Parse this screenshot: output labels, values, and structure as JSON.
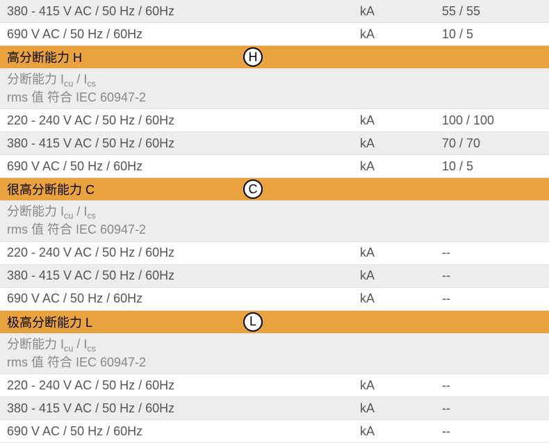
{
  "colors": {
    "header_bg": "#e8a23e",
    "row_even_bg": "#ededed",
    "row_odd_bg": "#ffffff",
    "text_color": "#555555",
    "subheader_text": "#888888",
    "border_color": "#e0e0e0"
  },
  "rows": [
    {
      "type": "data",
      "bg": "even",
      "label": "380 - 415 V AC / 50 Hz / 60Hz",
      "unit": "kA",
      "value": "55 / 55"
    },
    {
      "type": "data",
      "bg": "odd",
      "label": "690 V AC / 50 Hz / 60Hz",
      "unit": "kA",
      "value": "10 / 5"
    },
    {
      "type": "header",
      "label": "高分断能力 H",
      "icon": "H"
    },
    {
      "type": "subheader",
      "line1_prefix": "分断能力 I",
      "line1_sub1": "cu",
      "line1_mid": " / I",
      "line1_sub2": "cs",
      "line2": "rms 值 符合 IEC 60947-2"
    },
    {
      "type": "data",
      "bg": "odd",
      "label": "220 - 240 V AC / 50 Hz / 60Hz",
      "unit": "kA",
      "value": "100 / 100"
    },
    {
      "type": "data",
      "bg": "even",
      "label": "380 - 415 V AC / 50 Hz / 60Hz",
      "unit": "kA",
      "value": "70 / 70"
    },
    {
      "type": "data",
      "bg": "odd",
      "label": "690 V AC / 50 Hz / 60Hz",
      "unit": "kA",
      "value": "10 / 5"
    },
    {
      "type": "header",
      "label": "很高分断能力 C",
      "icon": "C"
    },
    {
      "type": "subheader",
      "line1_prefix": "分断能力 I",
      "line1_sub1": "cu",
      "line1_mid": " / I",
      "line1_sub2": "cs",
      "line2": "rms 值 符合 IEC 60947-2"
    },
    {
      "type": "data",
      "bg": "odd",
      "label": "220 - 240 V AC / 50 Hz / 60Hz",
      "unit": "kA",
      "value": "--"
    },
    {
      "type": "data",
      "bg": "even",
      "label": "380 - 415 V AC / 50 Hz / 60Hz",
      "unit": "kA",
      "value": "--"
    },
    {
      "type": "data",
      "bg": "odd",
      "label": "690 V AC / 50 Hz / 60Hz",
      "unit": "kA",
      "value": "--"
    },
    {
      "type": "header",
      "label": "极高分断能力 L",
      "icon": "L"
    },
    {
      "type": "subheader",
      "line1_prefix": "分断能力 I",
      "line1_sub1": "cu",
      "line1_mid": " / I",
      "line1_sub2": "cs",
      "line2": "rms 值 符合 IEC 60947-2"
    },
    {
      "type": "data",
      "bg": "odd",
      "label": "220 - 240 V AC / 50 Hz / 60Hz",
      "unit": "kA",
      "value": "--"
    },
    {
      "type": "data",
      "bg": "even",
      "label": "380 - 415 V AC / 50 Hz / 60Hz",
      "unit": "kA",
      "value": "--"
    },
    {
      "type": "data",
      "bg": "odd",
      "label": "690 V AC / 50 Hz / 60Hz",
      "unit": "kA",
      "value": "--"
    }
  ]
}
